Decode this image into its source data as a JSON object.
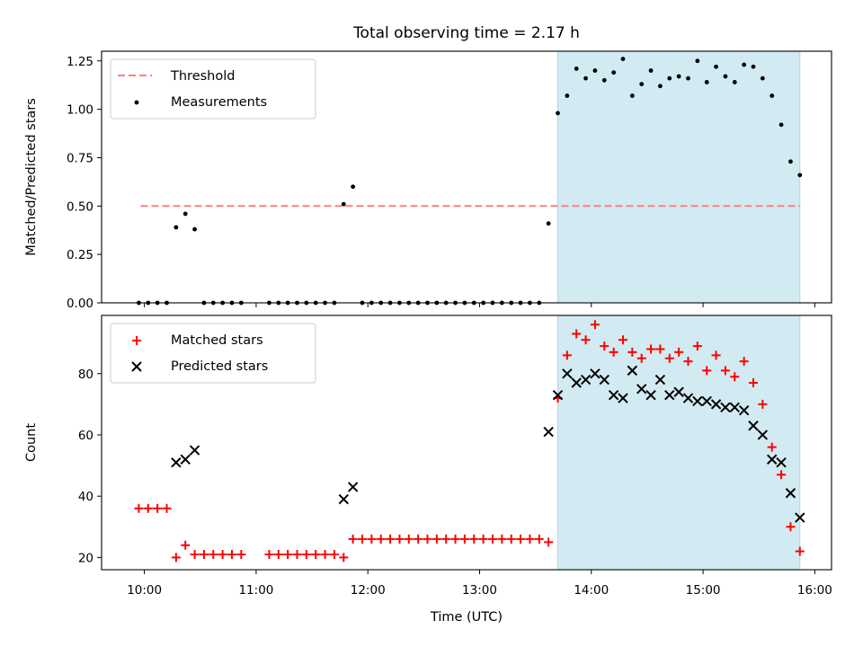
{
  "chart_data": {
    "title": "Total observing time = 2.17 h",
    "xlabel": "Time (UTC)",
    "x_ticks": [
      "10:00",
      "11:00",
      "12:00",
      "13:00",
      "14:00",
      "15:00",
      "16:00"
    ],
    "xlim": [
      "09:37",
      "16:09"
    ],
    "highlight_span": {
      "start": "13:42",
      "end": "15:52",
      "color": "#add8e6"
    },
    "subplots": [
      {
        "type": "scatter",
        "ylabel": "Matched/Predicted stars",
        "ylim": [
          0,
          1.3
        ],
        "y_ticks": [
          "0.00",
          "0.25",
          "0.50",
          "0.75",
          "1.00",
          "1.25"
        ],
        "legend": {
          "placement": "upper-left",
          "entries": [
            "Threshold",
            "Measurements"
          ]
        },
        "threshold": {
          "name": "Threshold",
          "value": 0.5,
          "x_start": "09:58",
          "x_end": "15:52",
          "color": "#ff7f7f",
          "style": "dashed"
        },
        "series": [
          {
            "name": "Measurements",
            "marker": "dot",
            "color": "#000000",
            "points": [
              [
                "09:57",
                0
              ],
              [
                "10:02",
                0
              ],
              [
                "10:07",
                0
              ],
              [
                "10:12",
                0
              ],
              [
                "10:17",
                0.39
              ],
              [
                "10:22",
                0.46
              ],
              [
                "10:27",
                0.38
              ],
              [
                "10:32",
                0
              ],
              [
                "10:37",
                0
              ],
              [
                "10:42",
                0
              ],
              [
                "10:47",
                0
              ],
              [
                "10:52",
                0
              ],
              [
                "11:07",
                0
              ],
              [
                "11:12",
                0
              ],
              [
                "11:17",
                0
              ],
              [
                "11:22",
                0
              ],
              [
                "11:27",
                0
              ],
              [
                "11:32",
                0
              ],
              [
                "11:37",
                0
              ],
              [
                "11:42",
                0
              ],
              [
                "11:47",
                0.51
              ],
              [
                "11:52",
                0.6
              ],
              [
                "11:57",
                0
              ],
              [
                "12:02",
                0
              ],
              [
                "12:07",
                0
              ],
              [
                "12:12",
                0
              ],
              [
                "12:17",
                0
              ],
              [
                "12:22",
                0
              ],
              [
                "12:27",
                0
              ],
              [
                "12:32",
                0
              ],
              [
                "12:37",
                0
              ],
              [
                "12:42",
                0
              ],
              [
                "12:47",
                0
              ],
              [
                "12:52",
                0
              ],
              [
                "12:57",
                0
              ],
              [
                "13:02",
                0
              ],
              [
                "13:07",
                0
              ],
              [
                "13:12",
                0
              ],
              [
                "13:17",
                0
              ],
              [
                "13:22",
                0
              ],
              [
                "13:27",
                0
              ],
              [
                "13:32",
                0
              ],
              [
                "13:37",
                0.41
              ],
              [
                "13:42",
                0.98
              ],
              [
                "13:47",
                1.07
              ],
              [
                "13:52",
                1.21
              ],
              [
                "13:57",
                1.16
              ],
              [
                "14:02",
                1.2
              ],
              [
                "14:07",
                1.15
              ],
              [
                "14:12",
                1.19
              ],
              [
                "14:17",
                1.26
              ],
              [
                "14:22",
                1.07
              ],
              [
                "14:27",
                1.13
              ],
              [
                "14:32",
                1.2
              ],
              [
                "14:37",
                1.12
              ],
              [
                "14:42",
                1.16
              ],
              [
                "14:47",
                1.17
              ],
              [
                "14:52",
                1.16
              ],
              [
                "14:57",
                1.25
              ],
              [
                "15:02",
                1.14
              ],
              [
                "15:07",
                1.22
              ],
              [
                "15:12",
                1.17
              ],
              [
                "15:17",
                1.14
              ],
              [
                "15:22",
                1.23
              ],
              [
                "15:27",
                1.22
              ],
              [
                "15:32",
                1.16
              ],
              [
                "15:37",
                1.07
              ],
              [
                "15:42",
                0.92
              ],
              [
                "15:47",
                0.73
              ],
              [
                "15:52",
                0.66
              ]
            ]
          }
        ]
      },
      {
        "type": "scatter",
        "ylabel": "Count",
        "ylim": [
          16,
          99
        ],
        "y_ticks": [
          "20",
          "40",
          "60",
          "80"
        ],
        "legend": {
          "placement": "upper-left",
          "entries": [
            "Matched stars",
            "Predicted stars"
          ]
        },
        "series": [
          {
            "name": "Matched stars",
            "marker": "plus",
            "color": "#ff0000",
            "points": [
              [
                "09:57",
                36
              ],
              [
                "10:02",
                36
              ],
              [
                "10:07",
                36
              ],
              [
                "10:12",
                36
              ],
              [
                "10:17",
                20
              ],
              [
                "10:22",
                24
              ],
              [
                "10:27",
                21
              ],
              [
                "10:32",
                21
              ],
              [
                "10:37",
                21
              ],
              [
                "10:42",
                21
              ],
              [
                "10:47",
                21
              ],
              [
                "10:52",
                21
              ],
              [
                "11:07",
                21
              ],
              [
                "11:12",
                21
              ],
              [
                "11:17",
                21
              ],
              [
                "11:22",
                21
              ],
              [
                "11:27",
                21
              ],
              [
                "11:32",
                21
              ],
              [
                "11:37",
                21
              ],
              [
                "11:42",
                21
              ],
              [
                "11:47",
                20
              ],
              [
                "11:52",
                26
              ],
              [
                "11:57",
                26
              ],
              [
                "12:02",
                26
              ],
              [
                "12:07",
                26
              ],
              [
                "12:12",
                26
              ],
              [
                "12:17",
                26
              ],
              [
                "12:22",
                26
              ],
              [
                "12:27",
                26
              ],
              [
                "12:32",
                26
              ],
              [
                "12:37",
                26
              ],
              [
                "12:42",
                26
              ],
              [
                "12:47",
                26
              ],
              [
                "12:52",
                26
              ],
              [
                "12:57",
                26
              ],
              [
                "13:02",
                26
              ],
              [
                "13:07",
                26
              ],
              [
                "13:12",
                26
              ],
              [
                "13:17",
                26
              ],
              [
                "13:22",
                26
              ],
              [
                "13:27",
                26
              ],
              [
                "13:32",
                26
              ],
              [
                "13:37",
                25
              ],
              [
                "13:42",
                72
              ],
              [
                "13:47",
                86
              ],
              [
                "13:52",
                93
              ],
              [
                "13:57",
                91
              ],
              [
                "14:02",
                96
              ],
              [
                "14:07",
                89
              ],
              [
                "14:12",
                87
              ],
              [
                "14:17",
                91
              ],
              [
                "14:22",
                87
              ],
              [
                "14:27",
                85
              ],
              [
                "14:32",
                88
              ],
              [
                "14:37",
                88
              ],
              [
                "14:42",
                85
              ],
              [
                "14:47",
                87
              ],
              [
                "14:52",
                84
              ],
              [
                "14:57",
                89
              ],
              [
                "15:02",
                81
              ],
              [
                "15:07",
                86
              ],
              [
                "15:12",
                81
              ],
              [
                "15:17",
                79
              ],
              [
                "15:22",
                84
              ],
              [
                "15:27",
                77
              ],
              [
                "15:32",
                70
              ],
              [
                "15:37",
                56
              ],
              [
                "15:42",
                47
              ],
              [
                "15:47",
                30
              ],
              [
                "15:52",
                22
              ]
            ]
          },
          {
            "name": "Predicted stars",
            "marker": "x",
            "color": "#000000",
            "points": [
              [
                "10:17",
                51
              ],
              [
                "10:22",
                52
              ],
              [
                "10:27",
                55
              ],
              [
                "11:47",
                39
              ],
              [
                "11:52",
                43
              ],
              [
                "13:37",
                61
              ],
              [
                "13:42",
                73
              ],
              [
                "13:47",
                80
              ],
              [
                "13:52",
                77
              ],
              [
                "13:57",
                78
              ],
              [
                "14:02",
                80
              ],
              [
                "14:07",
                78
              ],
              [
                "14:12",
                73
              ],
              [
                "14:17",
                72
              ],
              [
                "14:22",
                81
              ],
              [
                "14:27",
                75
              ],
              [
                "14:32",
                73
              ],
              [
                "14:37",
                78
              ],
              [
                "14:42",
                73
              ],
              [
                "14:47",
                74
              ],
              [
                "14:52",
                72
              ],
              [
                "14:57",
                71
              ],
              [
                "15:02",
                71
              ],
              [
                "15:07",
                70
              ],
              [
                "15:12",
                69
              ],
              [
                "15:17",
                69
              ],
              [
                "15:22",
                68
              ],
              [
                "15:27",
                63
              ],
              [
                "15:32",
                60
              ],
              [
                "15:37",
                52
              ],
              [
                "15:42",
                51
              ],
              [
                "15:47",
                41
              ],
              [
                "15:52",
                33
              ]
            ]
          }
        ]
      }
    ]
  }
}
